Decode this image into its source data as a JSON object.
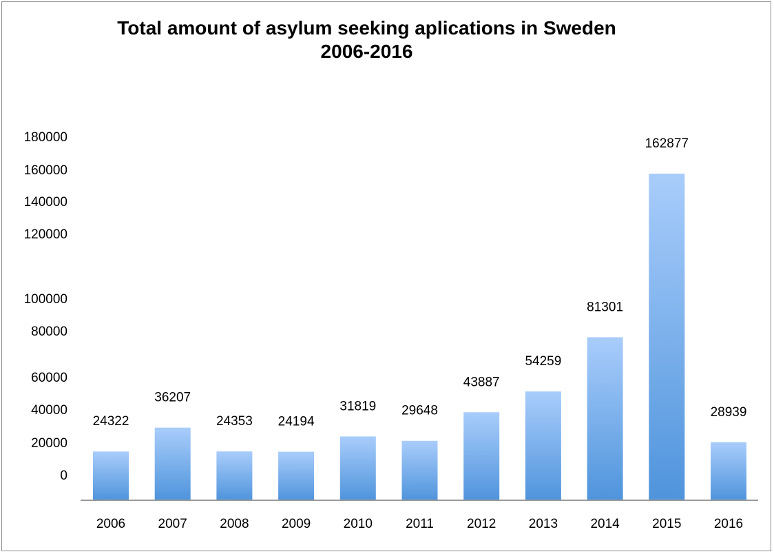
{
  "chart_data": {
    "type": "bar",
    "title": [
      "Total amount of asylum seeking aplications in Sweden",
      "2006-2016"
    ],
    "xlabel": "",
    "ylabel": "",
    "categories": [
      "2006",
      "2007",
      "2008",
      "2009",
      "2010",
      "2011",
      "2012",
      "2013",
      "2014",
      "2015",
      "2016"
    ],
    "values": [
      24322,
      36207,
      24353,
      24194,
      31819,
      29648,
      43887,
      54259,
      81301,
      162877,
      28939
    ],
    "data_labels": [
      "24322",
      "36207",
      "24353",
      "24194",
      "31819",
      "29648",
      "43887",
      "54259",
      "81301",
      "162877",
      "28939"
    ],
    "y_tick_labels": [
      "180000",
      "160000",
      "140000",
      "120000",
      "100000",
      "80000",
      "60000",
      "40000",
      "20000",
      "0"
    ],
    "grid": false,
    "legend": "none",
    "bar_color_top": "#a9cdfb",
    "bar_color_bottom": "#4f94dc",
    "axis_color": "#9a9a9a"
  }
}
